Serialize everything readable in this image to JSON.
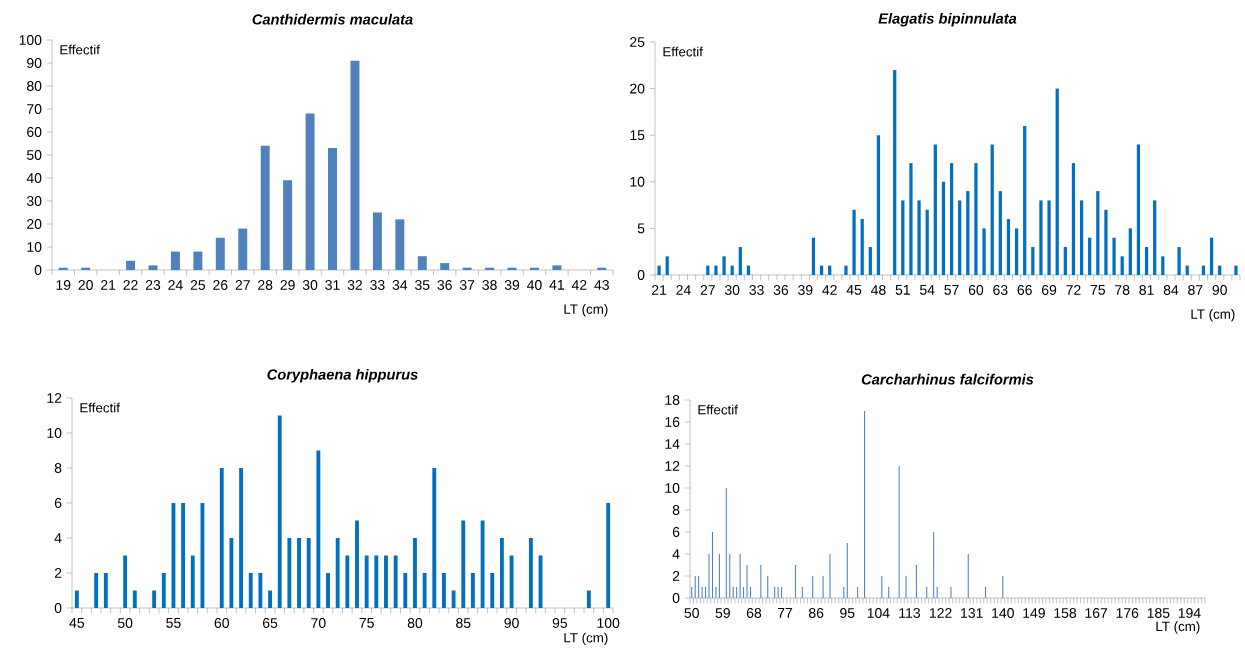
{
  "chart_data": [
    {
      "type": "bar",
      "title": "Canthidermis maculata",
      "xlabel": "LT (cm)",
      "ylabel": "Effectif",
      "color": "#4f81bd",
      "categories": [
        "19",
        "20",
        "21",
        "22",
        "23",
        "24",
        "25",
        "26",
        "27",
        "28",
        "29",
        "30",
        "31",
        "32",
        "33",
        "34",
        "35",
        "36",
        "37",
        "38",
        "39",
        "40",
        "41",
        "42",
        "43"
      ],
      "values": [
        1,
        1,
        0,
        4,
        2,
        8,
        8,
        14,
        18,
        54,
        39,
        68,
        53,
        91,
        25,
        22,
        6,
        3,
        1,
        1,
        1,
        1,
        2,
        0,
        1
      ],
      "ylim": [
        0,
        100
      ],
      "yticks": [
        0,
        10,
        20,
        30,
        40,
        50,
        60,
        70,
        80,
        90,
        100
      ]
    },
    {
      "type": "bar",
      "title": "Elagatis bipinnulata",
      "xlabel": "LT (cm)",
      "ylabel": "Effectif",
      "color": "#0070c0",
      "categories": [
        "21",
        null,
        null,
        "24",
        null,
        null,
        "27",
        null,
        null,
        "30",
        null,
        null,
        "33",
        null,
        null,
        "36",
        null,
        null,
        "39",
        null,
        null,
        "42",
        null,
        null,
        "45",
        null,
        null,
        "48",
        null,
        null,
        "51",
        null,
        null,
        "54",
        null,
        null,
        "57",
        null,
        null,
        "60",
        null,
        null,
        "63",
        null,
        null,
        "66",
        null,
        null,
        "69",
        null,
        null,
        "72",
        null,
        null,
        "75",
        null,
        null,
        "78",
        null,
        null,
        "81",
        null,
        null,
        "84",
        null,
        null,
        "87",
        null,
        null,
        "90",
        null,
        null
      ],
      "values": [
        1,
        2,
        0,
        0,
        0,
        0,
        1,
        1,
        2,
        1,
        3,
        1,
        0,
        0,
        0,
        0,
        0,
        0,
        0,
        4,
        1,
        1,
        0,
        1,
        7,
        6,
        3,
        15,
        0,
        22,
        8,
        12,
        8,
        7,
        14,
        10,
        12,
        8,
        9,
        12,
        5,
        14,
        9,
        6,
        5,
        16,
        3,
        8,
        8,
        20,
        3,
        12,
        8,
        4,
        9,
        7,
        4,
        2,
        5,
        14,
        3,
        8,
        2,
        0,
        3,
        1,
        0,
        1,
        4,
        1,
        0,
        1
      ],
      "ylim": [
        0,
        25
      ],
      "yticks": [
        0,
        5,
        10,
        15,
        20,
        25
      ]
    },
    {
      "type": "bar",
      "title": "Coryphaena hippurus",
      "xlabel": "LT (cm)",
      "ylabel": "Effectif",
      "color": "#0070c0",
      "categories": [
        "45",
        null,
        null,
        null,
        null,
        "50",
        null,
        null,
        null,
        null,
        "55",
        null,
        null,
        null,
        null,
        "60",
        null,
        null,
        null,
        null,
        "65",
        null,
        null,
        null,
        null,
        "70",
        null,
        null,
        null,
        null,
        "75",
        null,
        null,
        null,
        null,
        "80",
        null,
        null,
        null,
        null,
        "85",
        null,
        null,
        null,
        null,
        "90",
        null,
        null,
        null,
        null,
        "95",
        null,
        null,
        null,
        null,
        "100"
      ],
      "values": [
        1,
        0,
        2,
        2,
        0,
        3,
        1,
        0,
        1,
        2,
        6,
        6,
        3,
        6,
        0,
        8,
        4,
        8,
        2,
        2,
        1,
        11,
        4,
        4,
        4,
        9,
        2,
        4,
        3,
        5,
        3,
        3,
        3,
        3,
        2,
        4,
        2,
        8,
        2,
        1,
        5,
        2,
        5,
        2,
        4,
        3,
        0,
        4,
        3,
        0,
        0,
        0,
        0,
        1,
        0,
        6
      ],
      "ylim": [
        0,
        12
      ],
      "yticks": [
        0,
        2,
        4,
        6,
        8,
        10,
        12
      ]
    },
    {
      "type": "bar",
      "title": "Carcharhinus falciformis",
      "xlabel": "LT (cm)",
      "ylabel": "Effectif",
      "color": "#4a7ebb",
      "categories": [
        "50",
        null,
        null,
        null,
        null,
        null,
        null,
        null,
        null,
        "59",
        null,
        null,
        null,
        null,
        null,
        null,
        null,
        null,
        "68",
        null,
        null,
        null,
        null,
        null,
        null,
        null,
        null,
        "77",
        null,
        null,
        null,
        null,
        null,
        null,
        null,
        null,
        "86",
        null,
        null,
        null,
        null,
        null,
        null,
        null,
        null,
        "95",
        null,
        null,
        null,
        null,
        null,
        null,
        null,
        null,
        "104",
        null,
        null,
        null,
        null,
        null,
        null,
        null,
        null,
        "113",
        null,
        null,
        null,
        null,
        null,
        null,
        null,
        null,
        "122",
        null,
        null,
        null,
        null,
        null,
        null,
        null,
        null,
        "131",
        null,
        null,
        null,
        null,
        null,
        null,
        null,
        null,
        "140",
        null,
        null,
        null,
        null,
        null,
        null,
        null,
        null,
        "149",
        null,
        null,
        null,
        null,
        null,
        null,
        null,
        null,
        "158",
        null,
        null,
        null,
        null,
        null,
        null,
        null,
        null,
        "167",
        null,
        null,
        null,
        null,
        null,
        null,
        null,
        null,
        "176",
        null,
        null,
        null,
        null,
        null,
        null,
        null,
        null,
        "185",
        null,
        null,
        null,
        null,
        null,
        null,
        null,
        null,
        "194",
        null,
        null,
        null,
        null
      ],
      "values": [
        1,
        2,
        2,
        1,
        1,
        4,
        6,
        1,
        4,
        0,
        10,
        4,
        1,
        1,
        4,
        1,
        3,
        1,
        0,
        0,
        3,
        0,
        2,
        0,
        1,
        1,
        1,
        0,
        0,
        0,
        3,
        0,
        1,
        0,
        0,
        2,
        0,
        0,
        2,
        0,
        4,
        0,
        0,
        0,
        1,
        5,
        0,
        0,
        1,
        0,
        17,
        0,
        0,
        0,
        0,
        2,
        0,
        1,
        0,
        0,
        12,
        0,
        2,
        0,
        0,
        3,
        0,
        0,
        1,
        0,
        6,
        1,
        0,
        0,
        0,
        1,
        0,
        0,
        0,
        0,
        4,
        0,
        0,
        0,
        0,
        1,
        0,
        0,
        0,
        0,
        2,
        0,
        0,
        0,
        0,
        0,
        0,
        0,
        0,
        0,
        0,
        0,
        0,
        0,
        0,
        0,
        0,
        0,
        0,
        0,
        0,
        0,
        0,
        0,
        0,
        0,
        0,
        0,
        0,
        0,
        0,
        0,
        0,
        0,
        0,
        0,
        0,
        0,
        0,
        0,
        0,
        0,
        0,
        0,
        0,
        0,
        0,
        0,
        0,
        0,
        0,
        0,
        0,
        0,
        0,
        0,
        0,
        0,
        0
      ],
      "ylim": [
        0,
        18
      ],
      "yticks": [
        0,
        2,
        4,
        6,
        8,
        10,
        12,
        14,
        16,
        18
      ]
    }
  ]
}
